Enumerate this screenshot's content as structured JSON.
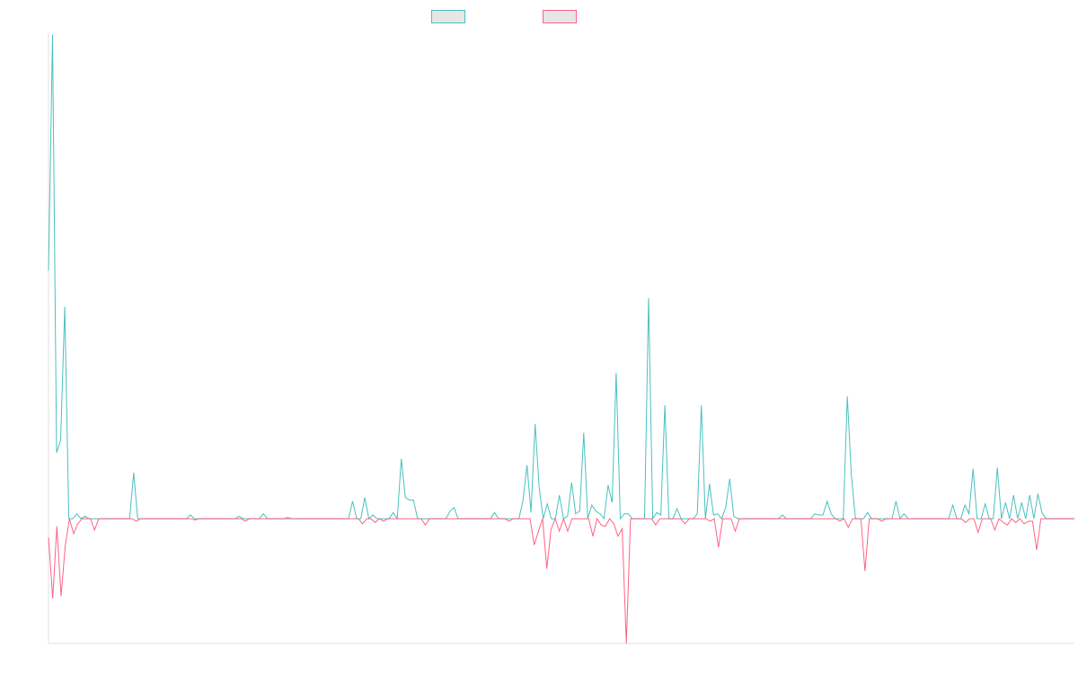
{
  "chart_data": {
    "type": "line",
    "title": "",
    "xlabel": "",
    "ylabel": "",
    "grid": false,
    "legend_position": "top-center",
    "ylim": [
      -1.0,
      3.9
    ],
    "series": [
      {
        "color": "#4bc0c0",
        "values": [
          1.99,
          3.88,
          0.53,
          0.63,
          1.7,
          0,
          0,
          0.04,
          0,
          0.02,
          0,
          0,
          0,
          0,
          0,
          0,
          0,
          0,
          0,
          0,
          0,
          0.37,
          0,
          0,
          0,
          0,
          0,
          0,
          0,
          0,
          0,
          0,
          0,
          0,
          0,
          0.03,
          0,
          0,
          0,
          0,
          0,
          0,
          0,
          0,
          0,
          0,
          0,
          0.02,
          0,
          0,
          0,
          0,
          0,
          0.04,
          0,
          0,
          0,
          0,
          0,
          0.01,
          0,
          0,
          0,
          0,
          0,
          0,
          0,
          0,
          0,
          0,
          0,
          0,
          0,
          0,
          0,
          0.14,
          0,
          0,
          0.17,
          0,
          0.03,
          0,
          0,
          0,
          0,
          0.05,
          0,
          0.48,
          0.17,
          0.15,
          0.15,
          0,
          0,
          0,
          0,
          0,
          0,
          0,
          0,
          0.06,
          0.09,
          0,
          0,
          0,
          0,
          0,
          0,
          0,
          0,
          0,
          0.05,
          0,
          0,
          0,
          0,
          0,
          0,
          0.14,
          0.43,
          0.05,
          0.76,
          0.25,
          0,
          0.12,
          0,
          0,
          0.19,
          0,
          0.02,
          0.29,
          0.04,
          0.06,
          0.69,
          0,
          0.11,
          0.06,
          0.04,
          0,
          0.27,
          0.13,
          1.17,
          0,
          0.04,
          0.04,
          0,
          0,
          0,
          0,
          1.77,
          0,
          0.05,
          0.03,
          0.91,
          0,
          0,
          0.08,
          0,
          0,
          0,
          0,
          0.04,
          0.91,
          0,
          0.28,
          0.03,
          0.04,
          0,
          0.09,
          0.32,
          0.02,
          0,
          0,
          0,
          0,
          0,
          0,
          0,
          0,
          0,
          0,
          0,
          0.03,
          0,
          0,
          0,
          0,
          0,
          0,
          0,
          0.04,
          0.03,
          0.03,
          0.14,
          0.04,
          0,
          0,
          0,
          0.98,
          0.35,
          0,
          0,
          0,
          0.05,
          0,
          0,
          0,
          0,
          0,
          0,
          0.14,
          0,
          0.04,
          0,
          0,
          0,
          0,
          0,
          0,
          0,
          0,
          0,
          0,
          0,
          0.11,
          0,
          0,
          0.11,
          0.04,
          0.4,
          0,
          0,
          0.12,
          0,
          0,
          0.41,
          0,
          0.13,
          0,
          0.19,
          0,
          0.13,
          0,
          0.19,
          0,
          0.2,
          0.05,
          0,
          0,
          0,
          0,
          0,
          0,
          0,
          0
        ]
      },
      {
        "color": "#ff6384",
        "values": [
          -0.15,
          -0.64,
          -0.06,
          -0.62,
          -0.22,
          0,
          -0.12,
          -0.04,
          0,
          0,
          0,
          -0.09,
          0,
          0,
          0,
          0,
          0,
          0,
          0,
          0,
          0,
          -0.02,
          0,
          0,
          0,
          0,
          0,
          0,
          0,
          0,
          0,
          0,
          0,
          0,
          0,
          -0.01,
          0,
          0,
          0,
          0,
          0,
          0,
          0,
          0,
          0,
          0,
          0,
          -0.02,
          0,
          0,
          0,
          0,
          0,
          0,
          0,
          0,
          0,
          0,
          0,
          0,
          0,
          0,
          0,
          0,
          0,
          0,
          0,
          0,
          0,
          0,
          0,
          0,
          0,
          0,
          0,
          -0.04,
          0,
          0,
          -0.03,
          0,
          -0.02,
          0,
          0,
          0,
          0,
          0,
          0,
          0,
          0,
          0,
          -0.05,
          0,
          0,
          0,
          0,
          0,
          0,
          0,
          0,
          0,
          0,
          0,
          0,
          0,
          0,
          0,
          0,
          0,
          0,
          0,
          -0.02,
          0,
          0,
          0,
          0,
          0,
          -0.21,
          -0.1,
          0,
          -0.4,
          -0.09,
          0,
          -0.1,
          0,
          -0.1,
          0,
          0,
          0,
          0,
          0,
          -0.14,
          0,
          -0.05,
          -0.06,
          0,
          -0.04,
          -0.14,
          -0.08,
          -1.0,
          0,
          0,
          0,
          0,
          0,
          0,
          -0.05,
          0,
          0,
          0,
          0,
          0,
          0,
          -0.04,
          0,
          0,
          0,
          0,
          0,
          -0.02,
          0,
          -0.23,
          0,
          0,
          0,
          -0.1,
          0,
          0,
          0,
          0,
          0,
          0,
          0,
          0,
          0,
          0,
          0,
          0,
          0,
          0,
          0,
          0,
          0,
          0,
          0,
          0,
          0,
          0,
          0,
          0,
          -0.02,
          0,
          -0.07,
          0,
          0,
          0,
          -0.42,
          0,
          0,
          0,
          -0.02,
          0,
          0,
          0,
          0,
          0,
          0,
          0,
          0,
          0,
          0,
          0,
          0,
          0,
          0,
          0,
          0,
          0,
          0,
          0,
          -0.03,
          0,
          0,
          -0.11,
          0,
          0,
          0,
          -0.09,
          0,
          -0.03,
          -0.05,
          0,
          -0.03,
          0,
          -0.04,
          -0.02,
          -0.02,
          -0.25,
          0,
          0,
          0,
          0,
          0,
          0,
          0,
          0,
          0
        ]
      }
    ]
  }
}
